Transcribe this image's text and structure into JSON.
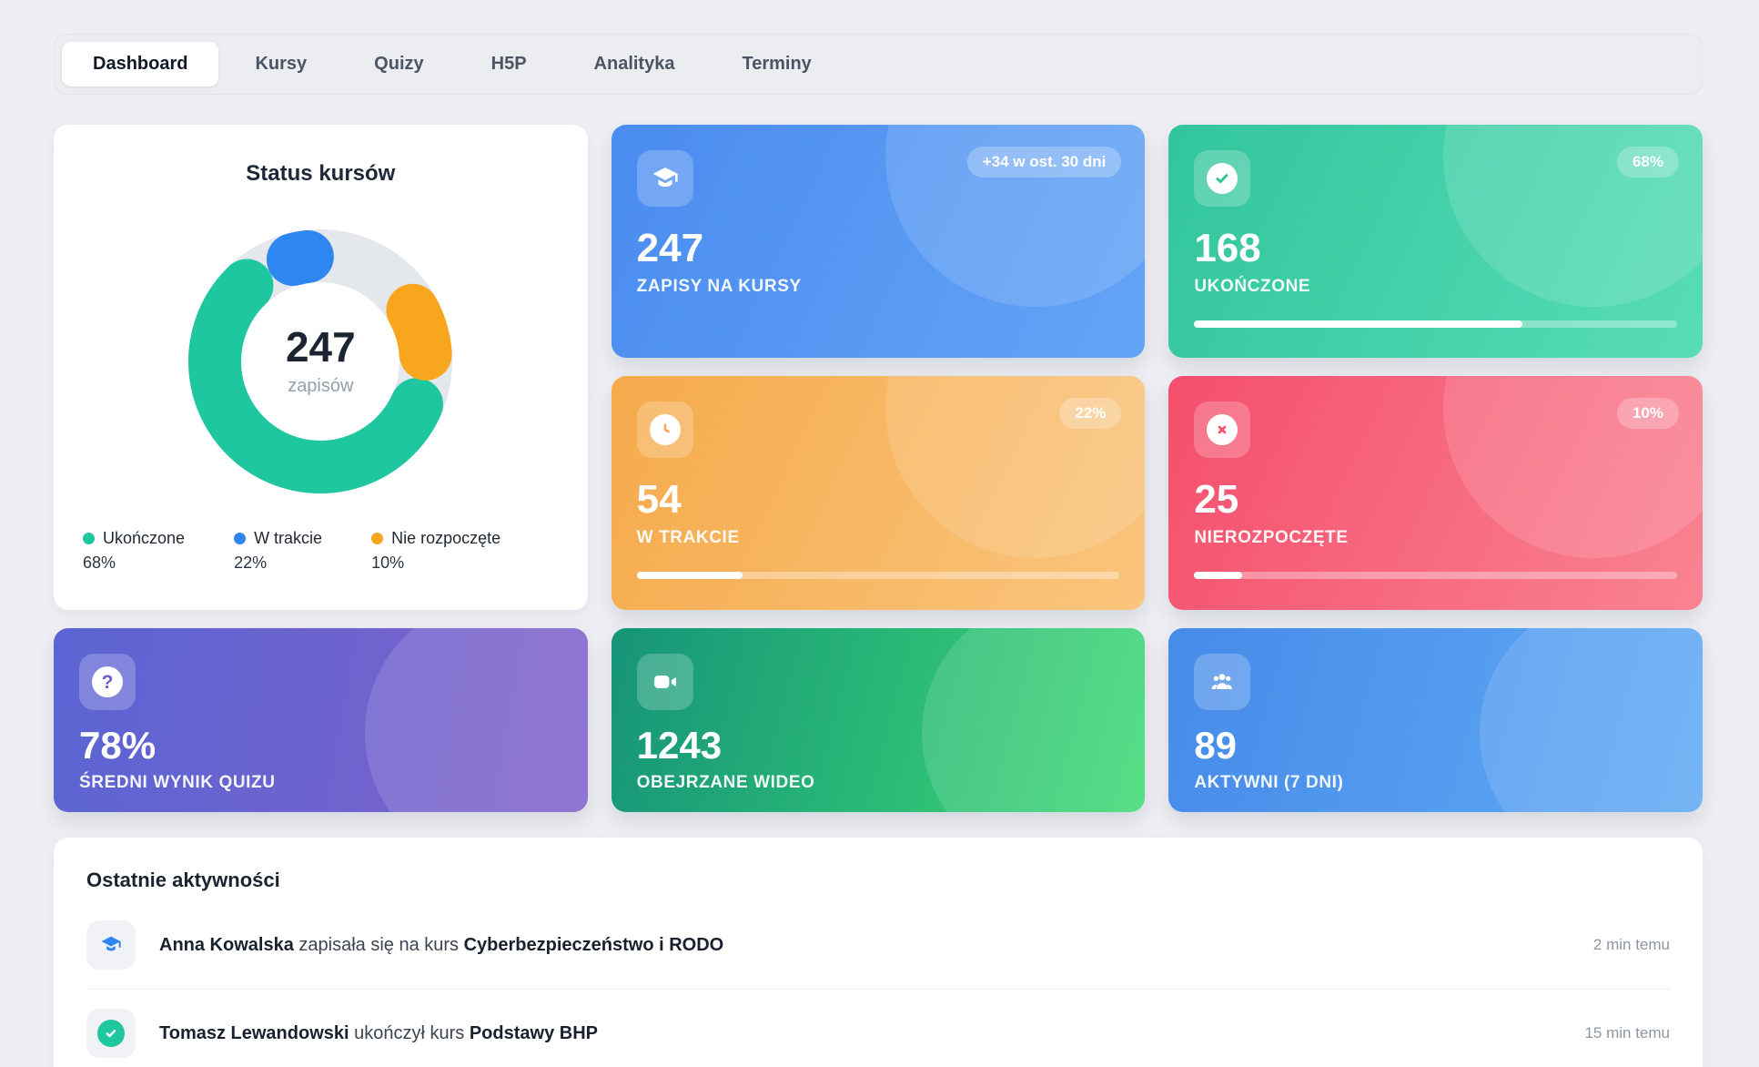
{
  "tabs": {
    "items": [
      {
        "label": "Dashboard",
        "active": true
      },
      {
        "label": "Kursy",
        "active": false
      },
      {
        "label": "Quizy",
        "active": false
      },
      {
        "label": "H5P",
        "active": false
      },
      {
        "label": "Analityka",
        "active": false
      },
      {
        "label": "Terminy",
        "active": false
      }
    ]
  },
  "chart_data": {
    "type": "donut",
    "title": "Status kursów",
    "center_value": "247",
    "center_label": "zapisów",
    "track_color": "#e4e7ec",
    "segments": [
      {
        "label": "Ukończone",
        "value": 68,
        "pct": "68%",
        "color": "#1fc7a0"
      },
      {
        "label": "W trakcie",
        "value": 22,
        "pct": "22%",
        "color": "#2e87f0"
      },
      {
        "label": "Nie rozpoczęte",
        "value": 10,
        "pct": "10%",
        "color": "#f7a61e"
      }
    ]
  },
  "stats": [
    {
      "icon": "graduation-cap-icon",
      "value": "247",
      "label": "ZAPISY NA KURSY",
      "badge": "+34 w ost. 30 dni"
    },
    {
      "icon": "check-circle-icon",
      "value": "168",
      "label": "UKOŃCZONE",
      "badge": "68%",
      "progress": 68
    },
    {
      "icon": "clock-icon",
      "value": "54",
      "label": "W TRAKCIE",
      "badge": "22%",
      "progress": 22
    },
    {
      "icon": "x-circle-icon",
      "value": "25",
      "label": "NIEROZPOCZĘTE",
      "badge": "10%",
      "progress": 10
    },
    {
      "icon": "question-circle-icon",
      "value": "78%",
      "label": "ŚREDNI WYNIK QUIZU"
    },
    {
      "icon": "video-camera-icon",
      "value": "1243",
      "label": "OBEJRZANE WIDEO"
    },
    {
      "icon": "users-icon",
      "value": "89",
      "label": "AKTYWNI (7 DNI)"
    }
  ],
  "colors": {
    "page_bg": "#edeff4",
    "gradients": {
      "blue": {
        "from": "#4a8cf0",
        "to": "#64a4f6",
        "angle": 115
      },
      "green": {
        "from": "#32c59c",
        "to": "#58ddb6",
        "angle": 115
      },
      "orange": {
        "from": "#f5aa4b",
        "to": "#fac57e",
        "angle": 115
      },
      "red": {
        "from": "#f44f6c",
        "to": "#fa8392",
        "angle": 115
      },
      "purple": {
        "from": "#5a65d3",
        "to": "#8061ca",
        "angle": 100
      },
      "teal": {
        "from": "#159478",
        "to": "#3eda75",
        "angle": 105
      },
      "blue2": {
        "from": "#468be9",
        "to": "#60aaf4",
        "angle": 105
      }
    },
    "activity_cap_icon": "#2f86f0",
    "activity_check_icon": "#1fc79e"
  },
  "activities": {
    "title": "Ostatnie aktywności",
    "items": [
      {
        "icon": "graduation-cap-icon",
        "name": "Anna Kowalska",
        "action": " zapisała się na kurs ",
        "course": "Cyberbezpieczeństwo i RODO",
        "time": "2 min temu"
      },
      {
        "icon": "check-circle-icon",
        "name": "Tomasz Lewandowski",
        "action": " ukończył kurs ",
        "course": "Podstawy BHP",
        "time": "15 min temu"
      }
    ]
  }
}
